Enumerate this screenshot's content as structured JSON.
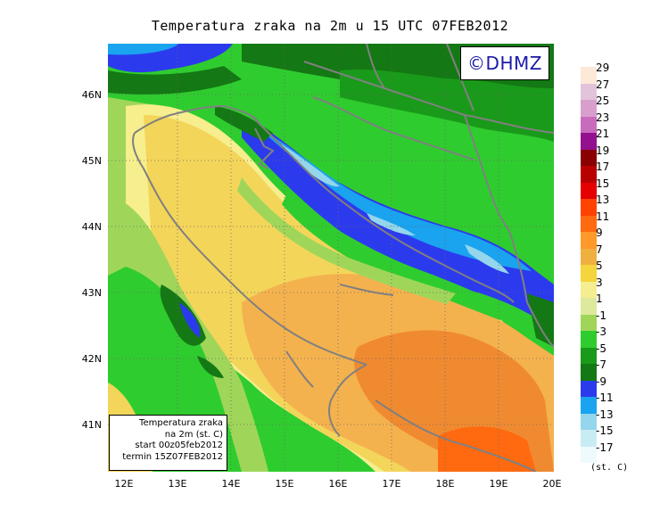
{
  "title": "Temperatura zraka na 2m u 15 UTC 07FEB2012",
  "logo_text": "©DHMZ",
  "info_box": {
    "line1": "Temperatura zraka",
    "line2": "na 2m (st. C)",
    "line3": "start 00z05feb2012",
    "line4": "termin 15Z07FEB2012"
  },
  "lat_labels": [
    "46N",
    "45N",
    "44N",
    "43N",
    "42N",
    "41N"
  ],
  "lon_labels": [
    "12E",
    "13E",
    "14E",
    "15E",
    "16E",
    "17E",
    "18E",
    "19E",
    "20E"
  ],
  "legend": {
    "unit": "(st. C)",
    "levels": [
      "29",
      "27",
      "25",
      "23",
      "21",
      "19",
      "17",
      "15",
      "13",
      "11",
      "9",
      "7",
      "5",
      "3",
      "1",
      "-1",
      "-3",
      "-5",
      "-7",
      "-9",
      "-11",
      "-13",
      "-15",
      "-17"
    ],
    "colors": [
      "#fde9d8",
      "#e2c3dc",
      "#d89fcd",
      "#c96bbd",
      "#93108f",
      "#8a0000",
      "#b80000",
      "#e40000",
      "#ff4200",
      "#ff6a10",
      "#ff9a2a",
      "#f0b040",
      "#f4d53c",
      "#f5ee90",
      "#dde99c",
      "#9fd65a",
      "#2fcc2f",
      "#1a9a1a",
      "#147814",
      "#2c3aee",
      "#1aa3ef",
      "#94d6ec",
      "#c8ecf3",
      "#eefafc"
    ]
  },
  "field_colors": {
    "warm_orange": "#f08a30",
    "hot_orange": "#ff6a10",
    "light_orange": "#f4b24e",
    "yellow": "#f3d55a",
    "pale_yellow": "#f7ee8e",
    "pale_green": "#dde99c",
    "green": "#2fcc2f",
    "dark_green": "#147814",
    "blue": "#2c3aee",
    "light_blue": "#1aa3ef",
    "ice": "#94d6ec",
    "coast": "#808080"
  }
}
